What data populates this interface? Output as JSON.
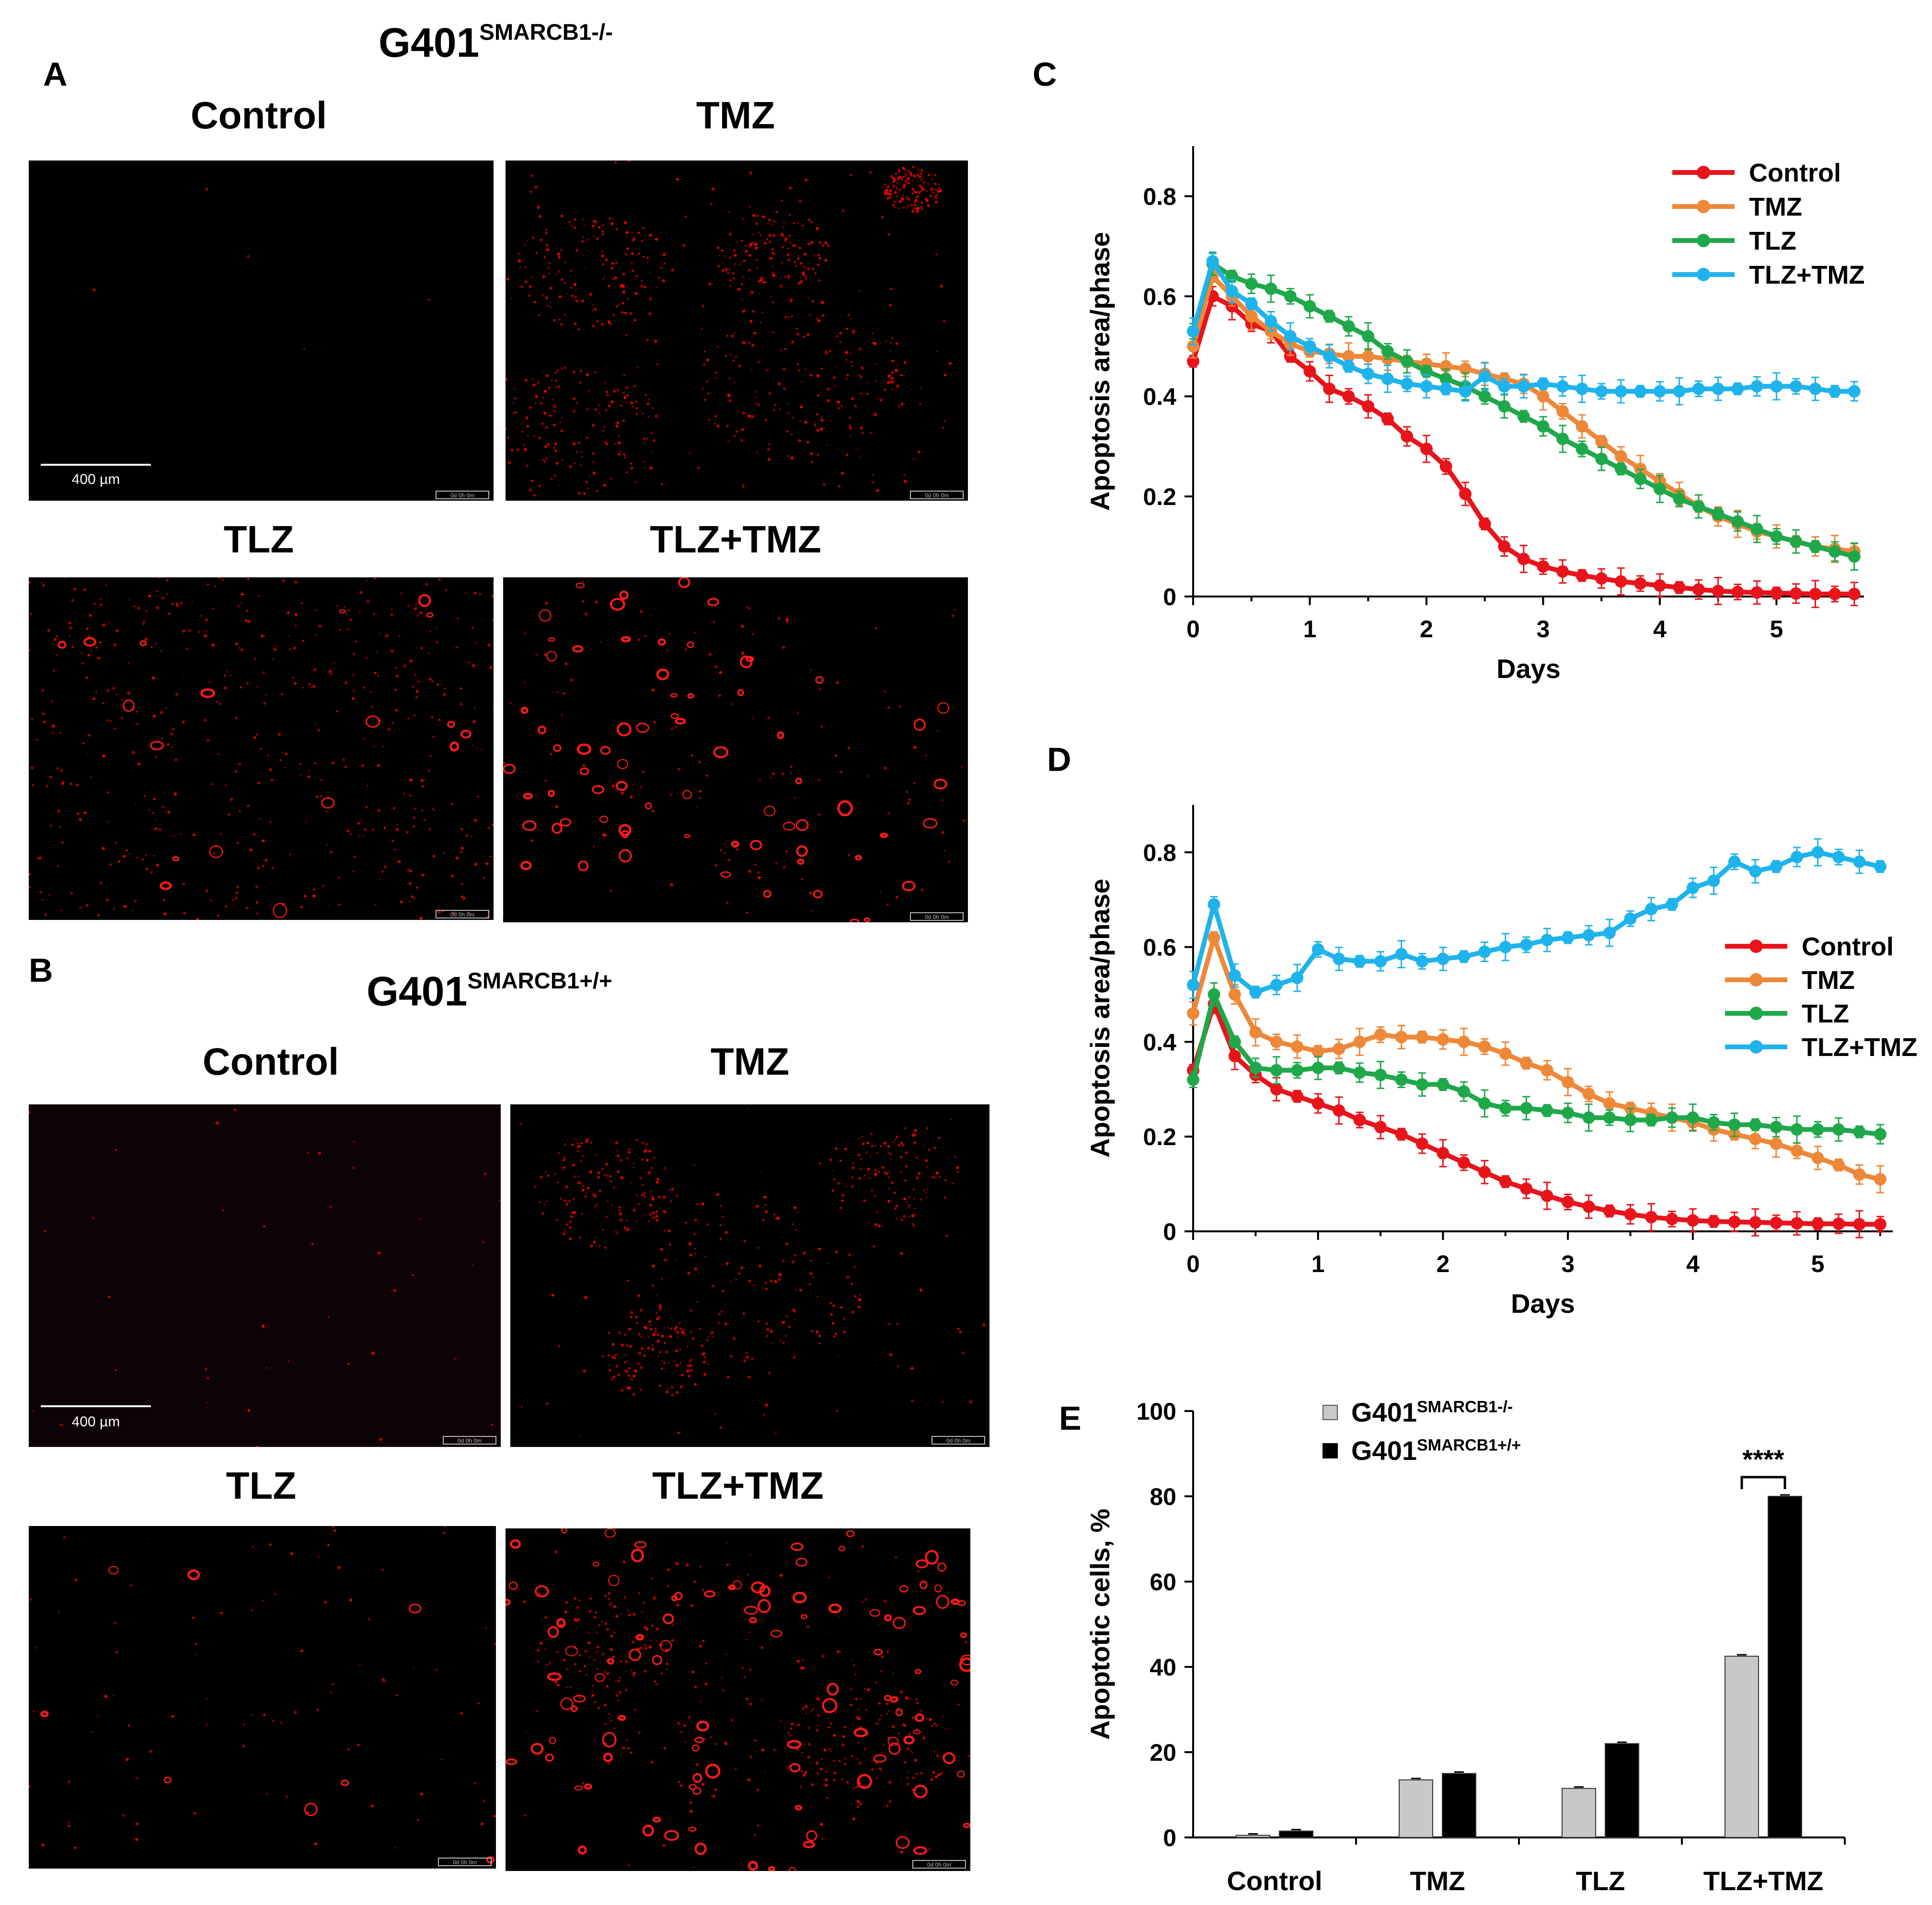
{
  "panel_labels": {
    "a": "A",
    "b": "B",
    "c": "C",
    "d": "D",
    "e": "E"
  },
  "panel_a": {
    "cell_line": "G401",
    "genotype": "SMARCB1-/-",
    "conditions": [
      "Control",
      "TMZ",
      "TLZ",
      "TLZ+TMZ"
    ],
    "scale_bar": "400 µm",
    "timestamp": "0d 0h 0m"
  },
  "panel_b": {
    "cell_line": "G401",
    "genotype": "SMARCB1+/+",
    "conditions": [
      "Control",
      "TMZ",
      "TLZ",
      "TLZ+TMZ"
    ],
    "scale_bar": "400 µm",
    "timestamp": "0d 0h 0m"
  },
  "colors": {
    "control": "#e8141b",
    "tmz": "#ee8839",
    "tlz": "#1fa84a",
    "tlz_tmz": "#1fb3ec",
    "bar_minus": "#c8c8c8",
    "bar_plus": "#000000"
  },
  "chart_data": [
    {
      "id": "C",
      "type": "line",
      "xlabel": "Days",
      "ylabel": "Apoptosis area/phase",
      "xlim": [
        0,
        5.75
      ],
      "ylim": [
        0,
        0.9
      ],
      "xticks": [
        "0",
        "1",
        "2",
        "3",
        "4",
        "5"
      ],
      "yticks": [
        "0",
        "0.2",
        "0.4",
        "0.6",
        "0.8"
      ],
      "legend_position": "top-right",
      "x": [
        0,
        0.167,
        0.333,
        0.5,
        0.667,
        0.833,
        1,
        1.167,
        1.333,
        1.5,
        1.667,
        1.833,
        2,
        2.167,
        2.333,
        2.5,
        2.667,
        2.833,
        3,
        3.167,
        3.333,
        3.5,
        3.667,
        3.833,
        4,
        4.167,
        4.333,
        4.5,
        4.667,
        4.833,
        5,
        5.167,
        5.333,
        5.5,
        5.667
      ],
      "series": [
        {
          "name": "Control",
          "color_key": "control",
          "values": [
            0.47,
            0.6,
            0.58,
            0.545,
            0.53,
            0.48,
            0.45,
            0.415,
            0.4,
            0.38,
            0.355,
            0.32,
            0.295,
            0.26,
            0.205,
            0.145,
            0.1,
            0.075,
            0.06,
            0.05,
            0.042,
            0.036,
            0.03,
            0.026,
            0.022,
            0.018,
            0.014,
            0.011,
            0.009,
            0.008,
            0.007,
            0.006,
            0.005,
            0.005,
            0.005
          ]
        },
        {
          "name": "TMZ",
          "color_key": "tmz",
          "values": [
            0.5,
            0.64,
            0.6,
            0.56,
            0.53,
            0.505,
            0.49,
            0.485,
            0.48,
            0.48,
            0.475,
            0.47,
            0.465,
            0.46,
            0.455,
            0.445,
            0.435,
            0.425,
            0.4,
            0.37,
            0.34,
            0.31,
            0.28,
            0.255,
            0.23,
            0.205,
            0.18,
            0.16,
            0.145,
            0.13,
            0.12,
            0.11,
            0.1,
            0.095,
            0.09
          ]
        },
        {
          "name": "TLZ",
          "color_key": "tlz",
          "values": [
            0.53,
            0.665,
            0.64,
            0.625,
            0.615,
            0.6,
            0.58,
            0.56,
            0.54,
            0.52,
            0.49,
            0.47,
            0.45,
            0.435,
            0.42,
            0.4,
            0.38,
            0.36,
            0.34,
            0.315,
            0.295,
            0.275,
            0.255,
            0.235,
            0.215,
            0.195,
            0.18,
            0.165,
            0.15,
            0.135,
            0.12,
            0.11,
            0.1,
            0.09,
            0.08
          ]
        },
        {
          "name": "TLZ+TMZ",
          "color_key": "tlz_tmz",
          "values": [
            0.53,
            0.67,
            0.61,
            0.585,
            0.55,
            0.52,
            0.5,
            0.48,
            0.46,
            0.445,
            0.435,
            0.425,
            0.42,
            0.415,
            0.41,
            0.44,
            0.42,
            0.42,
            0.425,
            0.42,
            0.415,
            0.41,
            0.41,
            0.41,
            0.41,
            0.41,
            0.415,
            0.415,
            0.415,
            0.42,
            0.42,
            0.42,
            0.415,
            0.41,
            0.41
          ]
        }
      ]
    },
    {
      "id": "D",
      "type": "line",
      "xlabel": "Days",
      "ylabel": "Apoptosis area/phase",
      "xlim": [
        0,
        5.6
      ],
      "ylim": [
        0,
        0.9
      ],
      "xticks": [
        "0",
        "1",
        "2",
        "3",
        "4",
        "5"
      ],
      "yticks": [
        "0",
        "0.2",
        "0.4",
        "0.6",
        "0.8"
      ],
      "legend_position": "right",
      "x": [
        0,
        0.167,
        0.333,
        0.5,
        0.667,
        0.833,
        1,
        1.167,
        1.333,
        1.5,
        1.667,
        1.833,
        2,
        2.167,
        2.333,
        2.5,
        2.667,
        2.833,
        3,
        3.167,
        3.333,
        3.5,
        3.667,
        3.833,
        4,
        4.167,
        4.333,
        4.5,
        4.667,
        4.833,
        5,
        5.167,
        5.333,
        5.5
      ],
      "series": [
        {
          "name": "Control",
          "color_key": "control",
          "values": [
            0.34,
            0.48,
            0.37,
            0.33,
            0.3,
            0.285,
            0.27,
            0.255,
            0.235,
            0.22,
            0.205,
            0.185,
            0.165,
            0.145,
            0.125,
            0.105,
            0.09,
            0.075,
            0.062,
            0.052,
            0.043,
            0.036,
            0.03,
            0.026,
            0.023,
            0.021,
            0.02,
            0.019,
            0.018,
            0.017,
            0.016,
            0.016,
            0.015,
            0.015
          ]
        },
        {
          "name": "TMZ",
          "color_key": "tmz",
          "values": [
            0.46,
            0.62,
            0.5,
            0.42,
            0.4,
            0.39,
            0.38,
            0.385,
            0.4,
            0.415,
            0.41,
            0.41,
            0.405,
            0.4,
            0.39,
            0.375,
            0.355,
            0.34,
            0.315,
            0.29,
            0.27,
            0.26,
            0.25,
            0.24,
            0.23,
            0.215,
            0.205,
            0.195,
            0.185,
            0.17,
            0.155,
            0.14,
            0.12,
            0.11
          ]
        },
        {
          "name": "TLZ",
          "color_key": "tlz",
          "values": [
            0.32,
            0.5,
            0.4,
            0.345,
            0.34,
            0.34,
            0.345,
            0.345,
            0.335,
            0.33,
            0.32,
            0.31,
            0.31,
            0.295,
            0.27,
            0.26,
            0.26,
            0.255,
            0.25,
            0.24,
            0.24,
            0.235,
            0.235,
            0.24,
            0.24,
            0.23,
            0.225,
            0.225,
            0.22,
            0.215,
            0.215,
            0.215,
            0.21,
            0.205
          ]
        },
        {
          "name": "TLZ+TMZ",
          "color_key": "tlz_tmz",
          "values": [
            0.52,
            0.69,
            0.54,
            0.505,
            0.52,
            0.535,
            0.595,
            0.575,
            0.57,
            0.57,
            0.585,
            0.57,
            0.575,
            0.58,
            0.59,
            0.6,
            0.605,
            0.615,
            0.62,
            0.625,
            0.63,
            0.66,
            0.68,
            0.69,
            0.725,
            0.74,
            0.78,
            0.76,
            0.77,
            0.79,
            0.8,
            0.79,
            0.78,
            0.77
          ]
        }
      ]
    },
    {
      "id": "E",
      "type": "bar",
      "ylabel": "Apoptotic cells, %",
      "categories": [
        "Control",
        "TMZ",
        "TLZ",
        "TLZ+TMZ"
      ],
      "ylim": [
        0,
        100
      ],
      "yticks": [
        "0",
        "20",
        "40",
        "60",
        "80",
        "100"
      ],
      "legend_position": "top-left",
      "significance": "****",
      "series": [
        {
          "name": "G401",
          "superscript": "SMARCB1-/-",
          "color_key": "bar_minus",
          "values": [
            0.5,
            13.5,
            11.5,
            42.5
          ]
        },
        {
          "name": "G401",
          "superscript": "SMARCB1+/+",
          "color_key": "bar_plus",
          "values": [
            1.5,
            15,
            22,
            80
          ]
        }
      ]
    }
  ]
}
